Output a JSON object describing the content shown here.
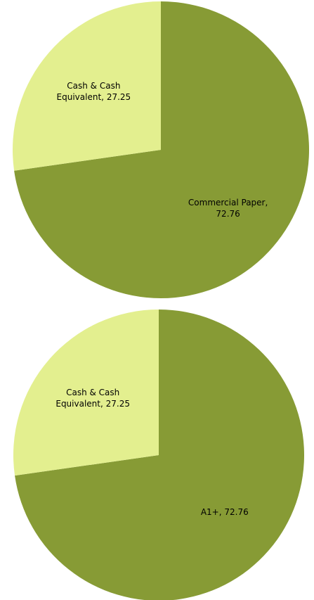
{
  "chart_data": [
    {
      "type": "pie",
      "categories": [
        "Commercial Paper",
        "Cash & Cash Equivalent"
      ],
      "values": [
        72.76,
        27.25
      ],
      "colors": [
        "#879b35",
        "#e3ef8f"
      ]
    },
    {
      "type": "pie",
      "categories": [
        "A1+",
        "Cash & Cash Equivalent"
      ],
      "values": [
        72.76,
        27.25
      ],
      "colors": [
        "#879b35",
        "#e3ef8f"
      ]
    }
  ]
}
